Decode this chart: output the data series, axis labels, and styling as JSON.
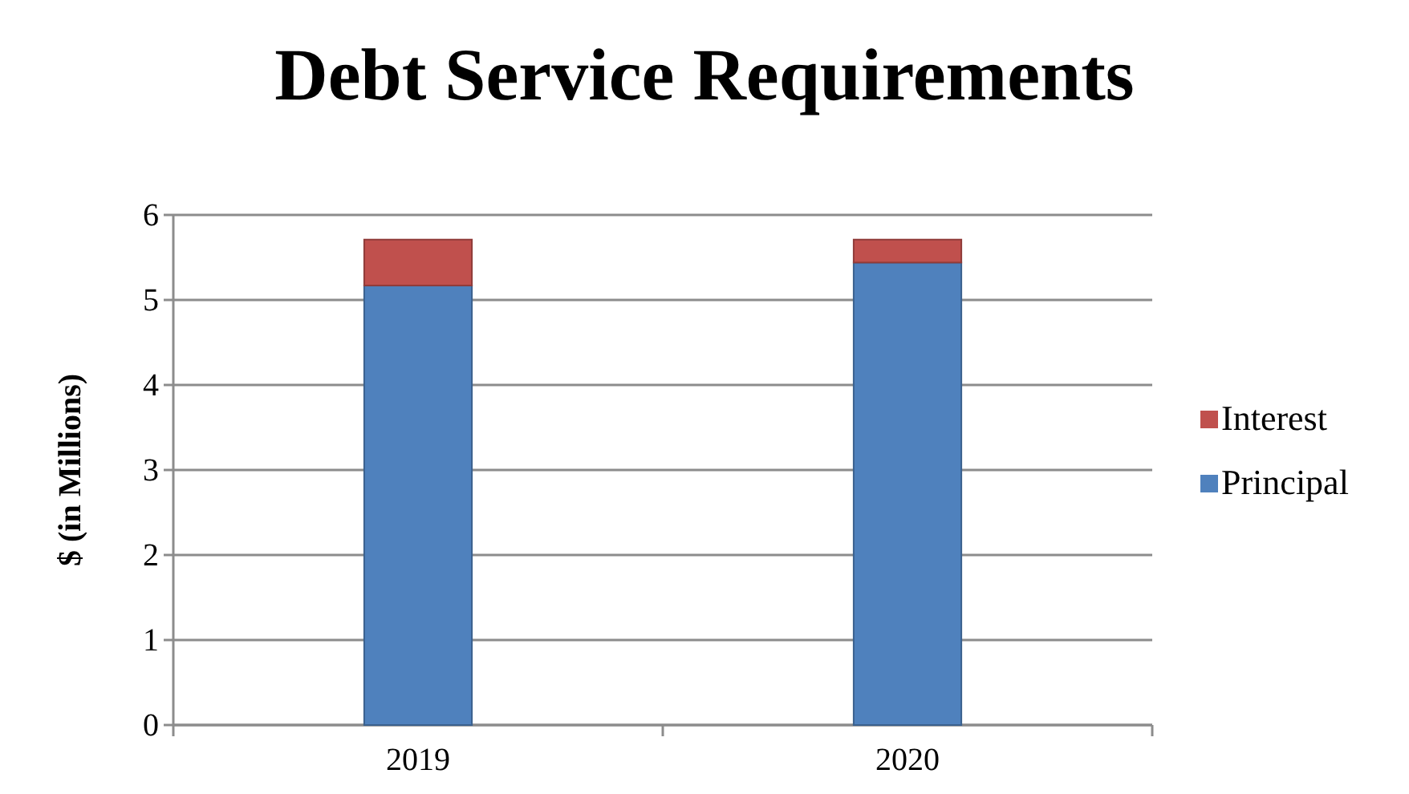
{
  "chart_data": {
    "type": "bar",
    "title": "Debt Service Requirements",
    "ylabel": "$ (in Millions)",
    "categories": [
      "2019",
      "2020"
    ],
    "stacked": true,
    "series": [
      {
        "name": "Principal",
        "color": "#4f81bd",
        "values": [
          5.17,
          5.44
        ]
      },
      {
        "name": "Interest",
        "color": "#c0504d",
        "values": [
          0.54,
          0.27
        ]
      }
    ],
    "ylim": [
      0,
      6
    ],
    "yticks": [
      0,
      1,
      2,
      3,
      4,
      5,
      6
    ],
    "grid": "y",
    "legend": "right"
  }
}
